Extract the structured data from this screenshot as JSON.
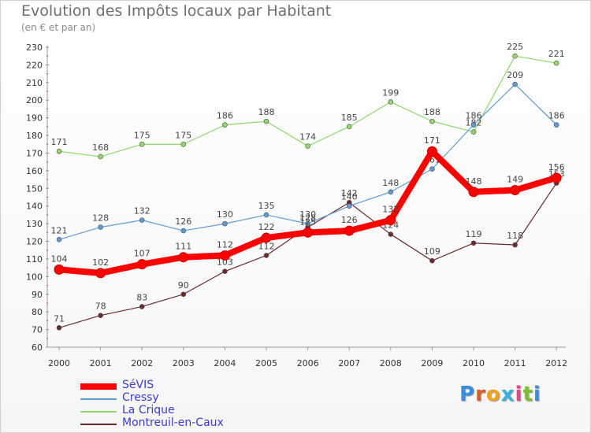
{
  "chart_data": {
    "type": "line",
    "title": "Evolution des Impôts locaux par Habitant",
    "subtitle": "(en € et par an)",
    "categories": [
      "2000",
      "2001",
      "2002",
      "2003",
      "2004",
      "2005",
      "2006",
      "2007",
      "2008",
      "2009",
      "2010",
      "2011",
      "2012"
    ],
    "ylim": [
      60,
      230
    ],
    "yticks": [
      60,
      70,
      80,
      90,
      100,
      110,
      120,
      130,
      140,
      150,
      160,
      170,
      180,
      190,
      200,
      210,
      220,
      230
    ],
    "series": [
      {
        "name": "SéVIS",
        "color": "#ff0000",
        "values": [
          104,
          102,
          107,
          111,
          112,
          122,
          125,
          126,
          132,
          171,
          148,
          149,
          156
        ]
      },
      {
        "name": "Cressy",
        "color": "#5e9bd3",
        "values": [
          121,
          128,
          132,
          126,
          130,
          135,
          130,
          140,
          148,
          161,
          186,
          209,
          186
        ]
      },
      {
        "name": "La Crique",
        "color": "#8fd86a",
        "values": [
          171,
          168,
          175,
          175,
          186,
          188,
          174,
          185,
          199,
          188,
          182,
          225,
          221
        ]
      },
      {
        "name": "Montreuil-en-Caux",
        "color": "#6b2b2b",
        "values": [
          71,
          78,
          83,
          90,
          103,
          112,
          128,
          142,
          124,
          109,
          119,
          118,
          153
        ]
      }
    ]
  },
  "logo": {
    "letters": [
      "P",
      "r",
      "o",
      "x",
      "i",
      "t",
      "i"
    ],
    "colors": [
      "#3b8be0",
      "#e05a2a",
      "#f0a020",
      "#3bb0e0",
      "#e04a8a",
      "#7ac030",
      "#3b8be0"
    ]
  }
}
